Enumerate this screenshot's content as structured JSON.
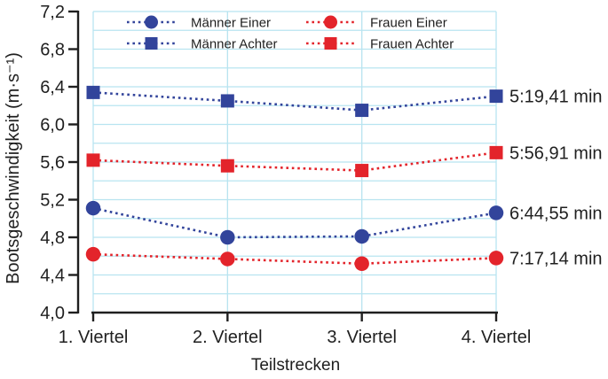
{
  "chart_data": {
    "type": "line",
    "title": "",
    "xlabel": "Teilstrecken",
    "ylabel": "Bootsgeschwindigkeit (m·s⁻¹)",
    "categories": [
      "1. Viertel",
      "2. Viertel",
      "3. Viertel",
      "4. Viertel"
    ],
    "ylim": [
      4.0,
      7.2
    ],
    "ytick_labels": [
      "7,2",
      "6,8",
      "6,4",
      "6,0",
      "5,6",
      "5,2",
      "4,8",
      "4,4",
      "4,0"
    ],
    "ytick_step": 0.4,
    "minor_grid_step": 0.2,
    "grid": true,
    "legend_position": "top-inside-two-columns",
    "series": [
      {
        "name": "Männer Einer",
        "marker": "circle",
        "color": "#32449b",
        "values": [
          5.11,
          4.8,
          4.81,
          5.06
        ],
        "end_label": "6:44,55 min"
      },
      {
        "name": "Männer Achter",
        "marker": "square",
        "color": "#32449b",
        "values": [
          6.34,
          6.25,
          6.15,
          6.3
        ],
        "end_label": "5:19,41 min"
      },
      {
        "name": "Frauen Einer",
        "marker": "circle",
        "color": "#e3242b",
        "values": [
          4.62,
          4.57,
          4.52,
          4.58
        ],
        "end_label": "7:17,14 min"
      },
      {
        "name": "Frauen Achter",
        "marker": "square",
        "color": "#e3242b",
        "values": [
          5.62,
          5.56,
          5.51,
          5.7
        ],
        "end_label": "5:56,91 min"
      }
    ],
    "colors": {
      "grid": "#b8e4f0",
      "axis": "#1f1f1f",
      "text": "#1f1f1f",
      "background": "#ffffff"
    }
  }
}
